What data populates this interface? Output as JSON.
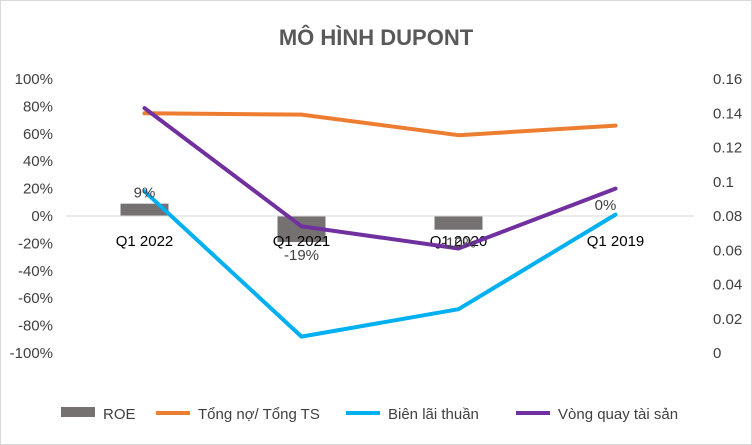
{
  "chart_data": {
    "type": "bar",
    "title": "MÔ HÌNH DUPONT",
    "categories": [
      "Q1 2022",
      "Q1 2021",
      "Q1 2020",
      "Q1 2019"
    ],
    "y_left": {
      "range": [
        -1.0,
        1.0
      ],
      "ticks": [
        -1.0,
        -0.8,
        -0.6,
        -0.4,
        -0.2,
        0,
        0.2,
        0.4,
        0.6,
        0.8,
        1.0
      ],
      "tick_labels": [
        "-100%",
        "-80%",
        "-60%",
        "-40%",
        "-20%",
        "0%",
        "20%",
        "40%",
        "60%",
        "80%",
        "100%"
      ]
    },
    "y_right": {
      "range": [
        0,
        0.16
      ],
      "ticks": [
        0,
        0.02,
        0.04,
        0.06,
        0.08,
        0.1,
        0.12,
        0.14,
        0.16
      ],
      "tick_labels": [
        "0",
        "0.02",
        "0.04",
        "0.06",
        "0.08",
        "0.1",
        "0.12",
        "0.14",
        "0.16"
      ]
    },
    "grid": false,
    "legend_position": "bottom",
    "series": [
      {
        "name": "ROE",
        "type": "bar",
        "axis": "left",
        "color": "#767171",
        "values": [
          0.09,
          -0.19,
          -0.1,
          0.0
        ],
        "data_labels": [
          "9%",
          "-19%",
          "-10%",
          "0%"
        ]
      },
      {
        "name": "Tổng nợ/ Tổng TS",
        "type": "line",
        "axis": "left",
        "color": "#ED7D31",
        "values": [
          0.75,
          0.74,
          0.59,
          0.66
        ]
      },
      {
        "name": "Biên lãi thuần",
        "type": "line",
        "axis": "left",
        "color": "#00B0F0",
        "values": [
          0.18,
          -0.88,
          -0.68,
          0.01
        ]
      },
      {
        "name": "Vòng quay tài sản",
        "type": "line",
        "axis": "right",
        "color": "#7030A0",
        "values": [
          0.143,
          0.074,
          0.061,
          0.096
        ]
      }
    ]
  }
}
